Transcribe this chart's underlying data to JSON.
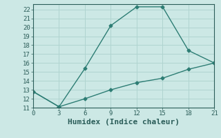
{
  "xlabel": "Humidex (Indice chaleur)",
  "line1_x": [
    0,
    3,
    6,
    9,
    12,
    15,
    18,
    21
  ],
  "line1_y": [
    12.8,
    11.1,
    15.4,
    20.2,
    22.3,
    22.3,
    17.4,
    16.0
  ],
  "line2_x": [
    0,
    3,
    6,
    9,
    12,
    15,
    18,
    21
  ],
  "line2_y": [
    12.8,
    11.1,
    12.0,
    13.0,
    13.8,
    14.3,
    15.3,
    16.0
  ],
  "line_color": "#2d7d74",
  "bg_color": "#cce8e5",
  "grid_color": "#b0d4d0",
  "xlim": [
    0,
    21
  ],
  "ylim": [
    11,
    22.6
  ],
  "xticks": [
    0,
    3,
    6,
    9,
    12,
    15,
    18,
    21
  ],
  "yticks": [
    11,
    12,
    13,
    14,
    15,
    16,
    17,
    18,
    19,
    20,
    21,
    22
  ],
  "marker": "D",
  "markersize": 2.5,
  "linewidth": 1.0,
  "font_color": "#2a5c58",
  "tick_fontsize": 6.5,
  "xlabel_fontsize": 8
}
